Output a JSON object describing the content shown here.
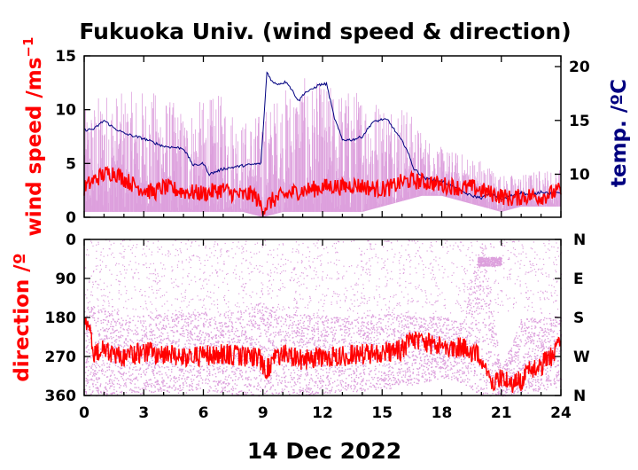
{
  "chart_data": {
    "title": "Fukuoka Univ. (wind speed & direction)",
    "xlabel": "14 Dec 2022",
    "x_ticks": [
      "0",
      "3",
      "6",
      "9",
      "12",
      "15",
      "18",
      "21",
      "24"
    ],
    "xlim": [
      0,
      24
    ],
    "colors": {
      "gust": "#dda0dd",
      "wind_mean": "#ff0000",
      "temperature": "#000080",
      "direction_scatter": "#dda0dd",
      "direction_mean": "#ff0000"
    },
    "panels": [
      {
        "type": "line",
        "ylabel_left": "wind speed /ms",
        "ylabel_left_superscript": "−1",
        "ylabel_right": "temp. /ºC",
        "ylim_left": [
          0,
          15
        ],
        "yticks_left": [
          "0",
          "5",
          "10",
          "15"
        ],
        "ylim_right": [
          6,
          21
        ],
        "yticks_right": [
          "10",
          "15",
          "20"
        ],
        "series": [
          {
            "key": "gust_range",
            "style": "dense vertical spikes",
            "x": [
              0,
              1,
              2,
              3,
              4,
              5,
              6,
              7,
              8,
              9,
              10,
              11,
              12,
              13,
              14,
              15,
              16,
              17,
              18,
              19,
              20,
              21,
              22,
              23,
              24
            ],
            "max": [
              10,
              12,
              11.5,
              12,
              11.5,
              10,
              11,
              11.5,
              9,
              10,
              12,
              13,
              12.5,
              12,
              12,
              11,
              11,
              8,
              6.5,
              6,
              5.5,
              4,
              4,
              4.5,
              4.5
            ],
            "min": [
              0.5,
              0.5,
              0.5,
              0.5,
              0.5,
              0.5,
              0.5,
              0.5,
              0.5,
              0,
              0.5,
              0.5,
              0.5,
              0.5,
              0.5,
              1,
              1.5,
              2,
              2,
              1.5,
              1,
              0.5,
              1,
              1,
              1
            ]
          },
          {
            "key": "wind_speed",
            "x": [
              0,
              0.5,
              1,
              1.5,
              2,
              2.5,
              3,
              3.5,
              4,
              4.5,
              5,
              5.5,
              6,
              6.5,
              7,
              7.5,
              8,
              8.5,
              9,
              9.5,
              10,
              10.5,
              11,
              11.5,
              12,
              12.5,
              13,
              13.5,
              14,
              14.5,
              15,
              15.5,
              16,
              16.5,
              17,
              17.5,
              18,
              18.5,
              19,
              19.5,
              20,
              20.5,
              21,
              21.5,
              22,
              22.5,
              23,
              23.5,
              24
            ],
            "y": [
              2.7,
              3.5,
              4.0,
              4.2,
              3.6,
              3.0,
              2.6,
              2.3,
              2.8,
              2.6,
              2.4,
              2.3,
              2.2,
              2.4,
              2.6,
              2.2,
              2.0,
              2.2,
              0.8,
              1.6,
              2.0,
              2.3,
              2.5,
              2.6,
              2.8,
              2.9,
              2.8,
              3.0,
              2.9,
              2.7,
              2.6,
              2.8,
              3.3,
              3.4,
              3.3,
              3.2,
              3.0,
              2.9,
              2.7,
              2.8,
              2.5,
              2.2,
              2.0,
              1.7,
              1.9,
              2.0,
              1.9,
              2.2,
              2.5
            ]
          },
          {
            "key": "temperature",
            "axis": "right",
            "x": [
              0,
              0.5,
              1,
              1.5,
              2,
              3,
              4,
              5,
              5.5,
              6,
              6.3,
              7,
              8,
              8.9,
              9.2,
              9.5,
              9.8,
              10.2,
              10.8,
              11.1,
              11.4,
              11.8,
              12.2,
              12.6,
              13,
              13.5,
              14,
              14.5,
              15,
              15.3,
              15.7,
              16.2,
              16.6,
              17.2,
              18,
              19,
              19.5,
              20,
              20.5,
              21,
              21.5,
              22,
              22.5,
              23,
              23.5,
              24
            ],
            "y": [
              14.1,
              14.2,
              15.0,
              14.3,
              13.8,
              13.3,
              12.6,
              12.4,
              10.8,
              11.0,
              10.0,
              10.5,
              10.8,
              11.0,
              19.5,
              18.5,
              18.4,
              18.6,
              16.8,
              17.6,
              17.8,
              18.3,
              18.4,
              15.2,
              13.2,
              13.2,
              13.5,
              14.8,
              15.1,
              15.0,
              13.9,
              12.5,
              10.5,
              9.6,
              9.4,
              8.4,
              8.0,
              7.8,
              8.2,
              7.6,
              8.0,
              8.3,
              8.0,
              8.4,
              8.2,
              8.3
            ]
          }
        ]
      },
      {
        "type": "scatter",
        "ylabel_left": "direction /º",
        "ylim_left": [
          0,
          360
        ],
        "y_inverted": true,
        "yticks_left": [
          "0",
          "90",
          "180",
          "270",
          "360"
        ],
        "yticks_right": [
          "N",
          "E",
          "S",
          "W",
          "N"
        ],
        "series": [
          {
            "key": "direction_spread",
            "style": "scatter dots",
            "x": [
              0,
              1,
              2,
              3,
              4,
              5,
              6,
              7,
              8,
              9,
              10,
              11,
              12,
              13,
              14,
              15,
              16,
              17,
              18,
              19,
              20,
              21,
              22,
              23,
              24
            ],
            "min": [
              150,
              160,
              170,
              175,
              170,
              170,
              165,
              170,
              165,
              140,
              170,
              170,
              175,
              175,
              175,
              170,
              170,
              180,
              175,
              190,
              0,
              300,
              180,
              180,
              175
            ],
            "max": [
              360,
              360,
              355,
              355,
              350,
              355,
              350,
              355,
              360,
              360,
              355,
              360,
              355,
              350,
              350,
              345,
              340,
              330,
              320,
              330,
              360,
              360,
              355,
              350,
              340
            ],
            "extra_cluster": {
              "x": [
                19.8,
                21.0
              ],
              "y": [
                40,
                60
              ]
            }
          },
          {
            "key": "direction_mean",
            "x": [
              0,
              0.2,
              0.5,
              1,
              1.5,
              2,
              3,
              4,
              5,
              6,
              7,
              8,
              8.8,
              9.2,
              9.6,
              10,
              11,
              12,
              13,
              14,
              15,
              16,
              16.5,
              17,
              18,
              19,
              19.5,
              20,
              20.5,
              21,
              21.5,
              22,
              22.5,
              23,
              23.5,
              24
            ],
            "y": [
              200,
              190,
              270,
              250,
              265,
              270,
              260,
              265,
              270,
              268,
              265,
              270,
              275,
              300,
              270,
              265,
              280,
              270,
              268,
              265,
              260,
              255,
              225,
              240,
              245,
              250,
              260,
              270,
              330,
              320,
              330,
              325,
              300,
              290,
              270,
              240
            ]
          }
        ]
      }
    ]
  }
}
